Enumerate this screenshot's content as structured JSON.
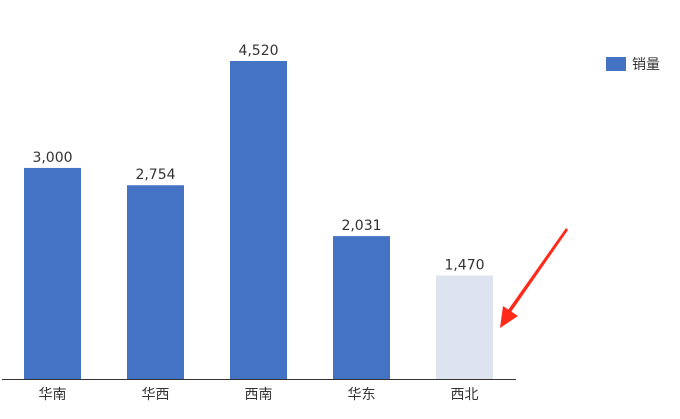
{
  "chart_data": {
    "type": "bar",
    "categories": [
      "华南",
      "华西",
      "西南",
      "华东",
      "西北"
    ],
    "series": [
      {
        "name": "销量",
        "values": [
          3000,
          2754,
          4520,
          2031,
          1470
        ]
      }
    ],
    "data_labels": [
      "3,000",
      "2,754",
      "4,520",
      "2,031",
      "1,470"
    ],
    "ylim": [
      0,
      5400
    ],
    "grid": false,
    "legend": "top-right",
    "colors": {
      "bar": "#4472c4",
      "highlighted_bar": "#dde3ef",
      "axis": "#333333",
      "annotation_arrow": "#ff2a1a"
    },
    "highlighted_category": "西北",
    "annotation": "red arrow pointing at 西北 bar"
  }
}
